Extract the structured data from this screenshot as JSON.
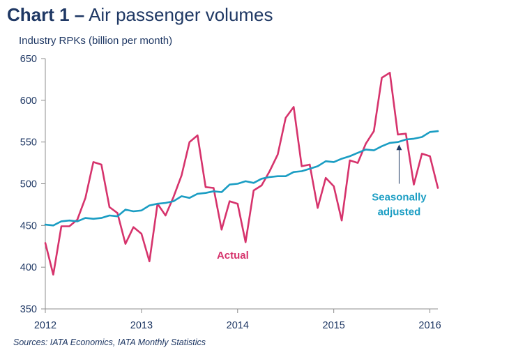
{
  "chart_data": {
    "type": "line",
    "title_bold": "Chart 1 –",
    "title_rest": "Air passenger volumes",
    "ylabel": "Industry RPKs (billion per month)",
    "xlabel": "",
    "source": "Sources: IATA Economics, IATA Monthly Statistics",
    "ylim": [
      350,
      650
    ],
    "yticks": [
      350,
      400,
      450,
      500,
      550,
      600,
      650
    ],
    "xlim": [
      2012,
      2016.083
    ],
    "xticks": [
      2012,
      2013,
      2014,
      2015,
      2016
    ],
    "grid": false,
    "colors": {
      "actual": "#d6336c",
      "seasonal": "#1a9dc3",
      "text": "#1f3864",
      "axis": "#8c8c8c"
    },
    "series": [
      {
        "name": "Actual",
        "key": "actual",
        "x": [
          2012.0,
          2012.083,
          2012.167,
          2012.25,
          2012.333,
          2012.417,
          2012.5,
          2012.583,
          2012.667,
          2012.75,
          2012.833,
          2012.917,
          2013.0,
          2013.083,
          2013.167,
          2013.25,
          2013.333,
          2013.417,
          2013.5,
          2013.583,
          2013.667,
          2013.75,
          2013.833,
          2013.917,
          2014.0,
          2014.083,
          2014.167,
          2014.25,
          2014.333,
          2014.417,
          2014.5,
          2014.583,
          2014.667,
          2014.75,
          2014.833,
          2014.917,
          2015.0,
          2015.083,
          2015.167,
          2015.25,
          2015.333,
          2015.417,
          2015.5,
          2015.583,
          2015.667,
          2015.75,
          2015.833,
          2015.917,
          2016.0,
          2016.083
        ],
        "values": [
          429,
          391,
          449,
          449,
          457,
          483,
          526,
          523,
          472,
          465,
          428,
          448,
          440,
          407,
          476,
          462,
          484,
          510,
          550,
          558,
          496,
          495,
          445,
          479,
          476,
          430,
          492,
          498,
          515,
          535,
          579,
          592,
          521,
          523,
          471,
          507,
          497,
          456,
          528,
          525,
          548,
          563,
          627,
          633,
          559,
          560,
          499,
          536,
          533,
          495
        ]
      },
      {
        "name": "Seasonally adjusted",
        "key": "seasonal",
        "x": [
          2012.0,
          2012.083,
          2012.167,
          2012.25,
          2012.333,
          2012.417,
          2012.5,
          2012.583,
          2012.667,
          2012.75,
          2012.833,
          2012.917,
          2013.0,
          2013.083,
          2013.167,
          2013.25,
          2013.333,
          2013.417,
          2013.5,
          2013.583,
          2013.667,
          2013.75,
          2013.833,
          2013.917,
          2014.0,
          2014.083,
          2014.167,
          2014.25,
          2014.333,
          2014.417,
          2014.5,
          2014.583,
          2014.667,
          2014.75,
          2014.833,
          2014.917,
          2015.0,
          2015.083,
          2015.167,
          2015.25,
          2015.333,
          2015.417,
          2015.5,
          2015.583,
          2015.667,
          2015.75,
          2015.833,
          2015.917,
          2016.0,
          2016.083
        ],
        "values": [
          451,
          450,
          455,
          456,
          455,
          459,
          458,
          459,
          462,
          461,
          469,
          467,
          468,
          474,
          476,
          477,
          479,
          485,
          483,
          488,
          489,
          491,
          490,
          499,
          500,
          503,
          501,
          506,
          508,
          509,
          509,
          514,
          515,
          518,
          521,
          527,
          526,
          530,
          533,
          537,
          541,
          540,
          545,
          549,
          550,
          553,
          554,
          556,
          562,
          563
        ]
      }
    ],
    "annotations": [
      {
        "key": "actual",
        "lines": [
          "Actual"
        ],
        "anchor_x": 2013.95,
        "anchor_y": 410
      },
      {
        "key": "seasonal",
        "lines": [
          "Seasonally",
          "adjusted"
        ],
        "anchor_x": 2015.68,
        "anchor_y": 480,
        "arrow_from_y": 500,
        "arrow_to_y": 547
      }
    ]
  }
}
